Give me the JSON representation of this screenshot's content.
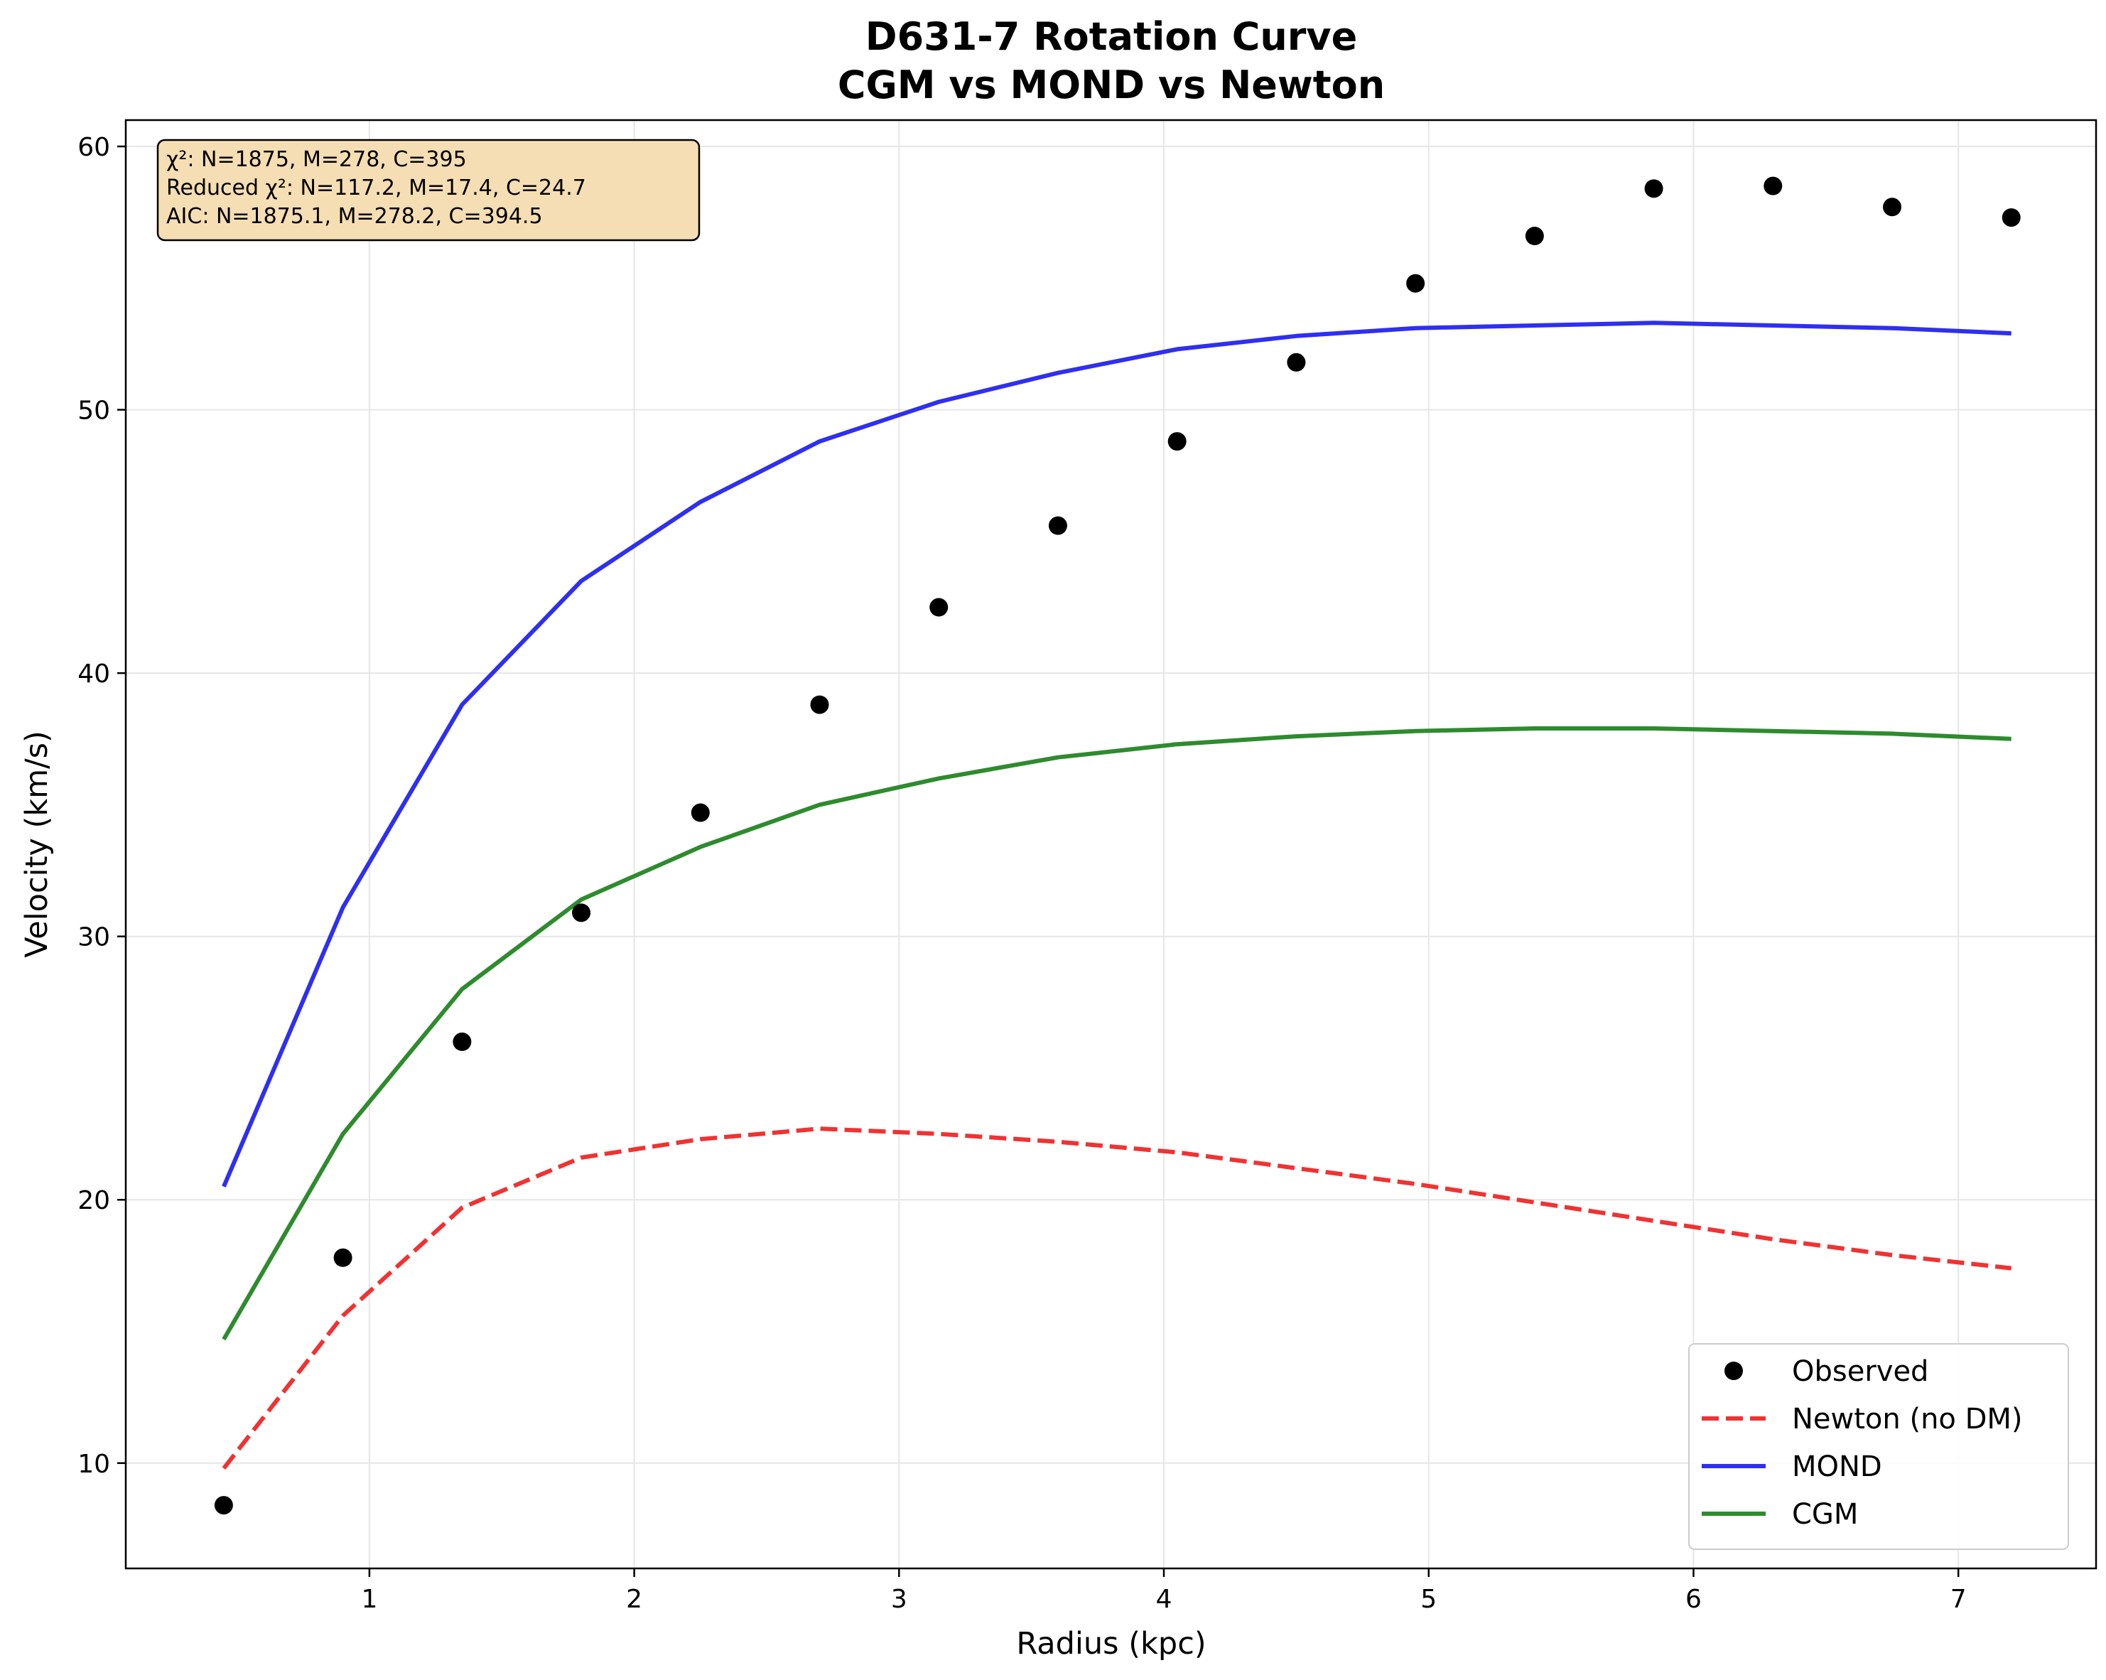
{
  "chart_data": {
    "type": "line",
    "title": [
      "D631-7 Rotation Curve",
      "CGM vs MOND vs Newton"
    ],
    "xlabel": "Radius (kpc)",
    "ylabel": "Velocity (km/s)",
    "xlim": [
      0.08,
      7.52
    ],
    "ylim": [
      6.0,
      61.0
    ],
    "xticks": [
      1,
      2,
      3,
      4,
      5,
      6,
      7
    ],
    "yticks": [
      10,
      20,
      30,
      40,
      50,
      60
    ],
    "grid": true,
    "legend_position": "lower-right",
    "x": [
      0.45,
      0.9,
      1.35,
      1.8,
      2.25,
      2.7,
      3.15,
      3.6,
      4.05,
      4.5,
      4.95,
      5.4,
      5.85,
      6.3,
      6.75,
      7.2
    ],
    "series": [
      {
        "name": "Observed",
        "style": "points",
        "color": "#000000",
        "values": [
          8.4,
          17.8,
          26.0,
          30.9,
          34.7,
          38.8,
          42.5,
          45.6,
          48.8,
          51.8,
          54.8,
          56.6,
          58.4,
          58.5,
          57.7,
          57.3
        ]
      },
      {
        "name": "Newton (no DM)",
        "style": "dashed",
        "color": "#f03232",
        "values": [
          9.8,
          15.6,
          19.7,
          21.6,
          22.3,
          22.7,
          22.5,
          22.2,
          21.8,
          21.2,
          20.6,
          19.9,
          19.2,
          18.5,
          17.9,
          17.4
        ]
      },
      {
        "name": "MOND",
        "style": "solid",
        "color": "#2f2ff0",
        "values": [
          20.5,
          31.1,
          38.8,
          43.5,
          46.5,
          48.8,
          50.3,
          51.4,
          52.3,
          52.8,
          53.1,
          53.2,
          53.3,
          53.2,
          53.1,
          52.9
        ]
      },
      {
        "name": "CGM",
        "style": "solid",
        "color": "#2e8b2e",
        "values": [
          14.7,
          22.5,
          28.0,
          31.4,
          33.4,
          35.0,
          36.0,
          36.8,
          37.3,
          37.6,
          37.8,
          37.9,
          37.9,
          37.8,
          37.7,
          37.5
        ]
      }
    ],
    "annotation": {
      "lines": [
        "χ²: N=1875, M=278, C=395",
        "Reduced χ²: N=117.2, M=17.4, C=24.7",
        "AIC: N=1875.1, M=278.2, C=394.5"
      ],
      "background": "#f5deb3",
      "position": "top-left"
    }
  }
}
